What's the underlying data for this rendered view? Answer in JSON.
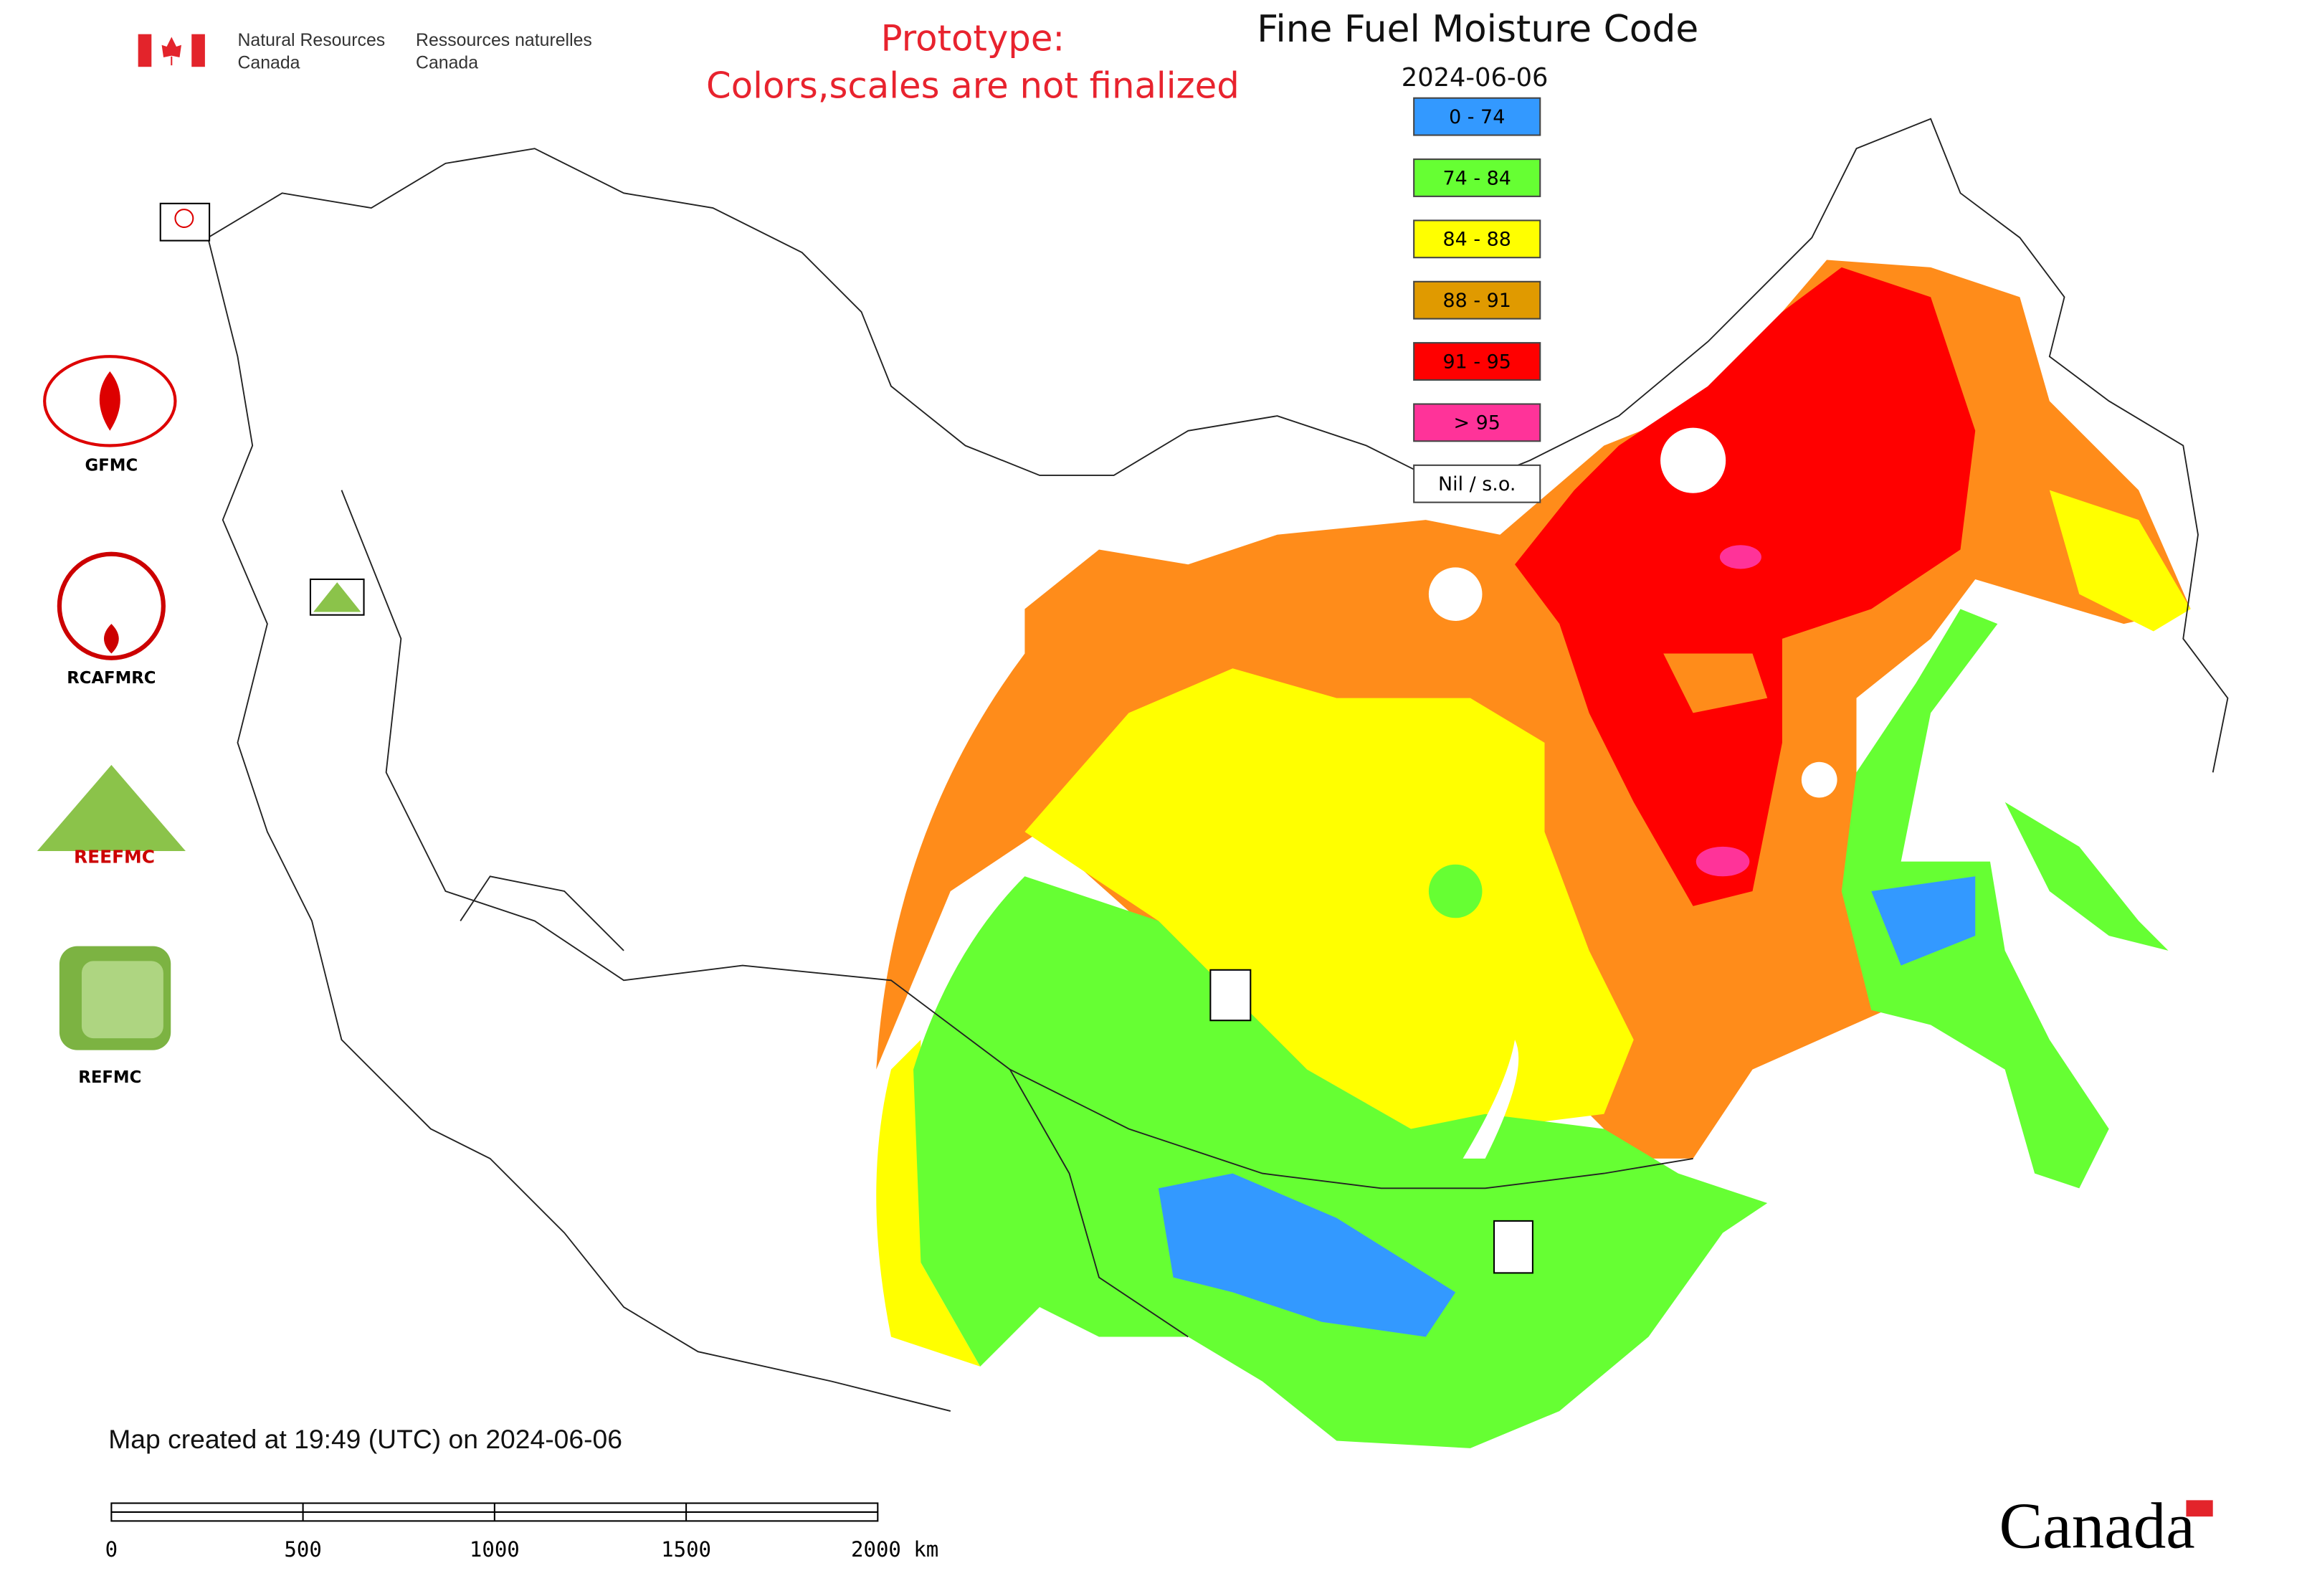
{
  "header": {
    "agency_en": [
      "Natural Resources",
      "Canada"
    ],
    "agency_fr": [
      "Ressources naturelles",
      "Canada"
    ],
    "prototype_note": [
      "Prototype:",
      "Colors,scales are not finalized"
    ]
  },
  "map": {
    "title": "Fine Fuel Moisture Code",
    "date": "2024-06-06",
    "legend": [
      {
        "label": "0 - 74",
        "color": "#3399ff"
      },
      {
        "label": "74 - 84",
        "color": "#66ff33"
      },
      {
        "label": "84 - 88",
        "color": "#ffff00"
      },
      {
        "label": "88 - 91",
        "color": "#e09a00"
      },
      {
        "label": "91 - 95",
        "color": "#ff0000"
      },
      {
        "label": "> 95",
        "color": "#ff3399"
      },
      {
        "label": "Nil / s.o.",
        "color": "#ffffff"
      }
    ]
  },
  "logos": [
    "GFMC",
    "RCAFMRC",
    "REEFMC",
    "REFMC"
  ],
  "footer": {
    "created": "Map created at 19:49 (UTC) on 2024-06-06",
    "scale_labels": [
      "0",
      "500",
      "1000",
      "1500",
      "2000 km"
    ],
    "wordmark": "Canada"
  }
}
